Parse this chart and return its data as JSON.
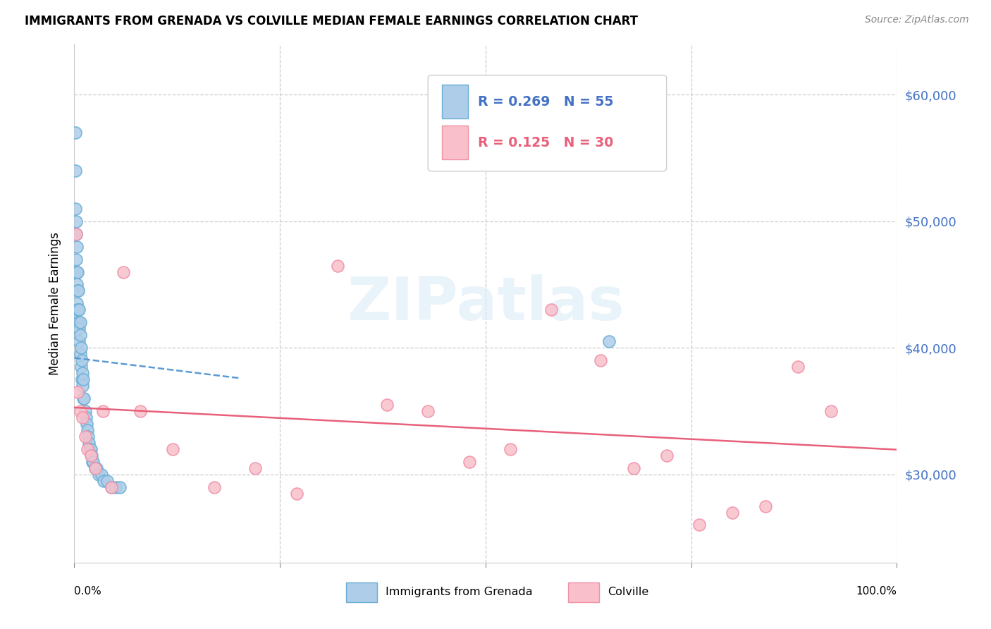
{
  "title": "IMMIGRANTS FROM GRENADA VS COLVILLE MEDIAN FEMALE EARNINGS CORRELATION CHART",
  "source": "Source: ZipAtlas.com",
  "ylabel": "Median Female Earnings",
  "yticks": [
    30000,
    40000,
    50000,
    60000
  ],
  "ytick_labels": [
    "$30,000",
    "$40,000",
    "$50,000",
    "$60,000"
  ],
  "xlim": [
    0.0,
    1.0
  ],
  "ylim": [
    23000,
    64000
  ],
  "blue_color": "#aecde8",
  "blue_edge": "#6aaed6",
  "pink_color": "#f9c0cb",
  "pink_edge": "#f090a8",
  "trend_blue_color": "#5b9bd5",
  "trend_pink_color": "#e8607a",
  "legend_R_blue": "R = 0.269",
  "legend_N_blue": "N = 55",
  "legend_R_pink": "R = 0.125",
  "legend_N_pink": "N = 30",
  "legend_label_blue": "Immigrants from Grenada",
  "legend_label_pink": "Colville",
  "watermark_text": "ZIPatlas",
  "blue_x": [
    0.001,
    0.001,
    0.001,
    0.001,
    0.002,
    0.002,
    0.002,
    0.002,
    0.003,
    0.003,
    0.003,
    0.003,
    0.004,
    0.004,
    0.004,
    0.004,
    0.005,
    0.005,
    0.005,
    0.006,
    0.006,
    0.006,
    0.007,
    0.007,
    0.007,
    0.008,
    0.008,
    0.009,
    0.009,
    0.01,
    0.01,
    0.011,
    0.011,
    0.012,
    0.013,
    0.014,
    0.015,
    0.016,
    0.017,
    0.018,
    0.019,
    0.02,
    0.021,
    0.022,
    0.023,
    0.025,
    0.027,
    0.03,
    0.033,
    0.036,
    0.04,
    0.045,
    0.05,
    0.055,
    0.65
  ],
  "blue_y": [
    57000,
    54000,
    51000,
    49000,
    50000,
    49000,
    47000,
    46000,
    48000,
    46000,
    45000,
    43500,
    46000,
    44500,
    43000,
    42000,
    44500,
    43000,
    42000,
    43000,
    41500,
    40500,
    42000,
    41000,
    39500,
    40000,
    38500,
    39000,
    37500,
    38000,
    37000,
    37500,
    36000,
    36000,
    35000,
    34500,
    34000,
    33500,
    33000,
    32500,
    32000,
    32000,
    31500,
    31000,
    31000,
    30500,
    30500,
    30000,
    30000,
    29500,
    29500,
    29000,
    29000,
    29000,
    40500
  ],
  "pink_x": [
    0.002,
    0.004,
    0.007,
    0.01,
    0.013,
    0.016,
    0.02,
    0.025,
    0.035,
    0.045,
    0.06,
    0.08,
    0.12,
    0.17,
    0.22,
    0.27,
    0.32,
    0.38,
    0.43,
    0.48,
    0.53,
    0.58,
    0.64,
    0.68,
    0.72,
    0.76,
    0.8,
    0.84,
    0.88,
    0.92
  ],
  "pink_y": [
    49000,
    36500,
    35000,
    34500,
    33000,
    32000,
    31500,
    30500,
    35000,
    29000,
    46000,
    35000,
    32000,
    29000,
    30500,
    28500,
    46500,
    35500,
    35000,
    31000,
    32000,
    43000,
    39000,
    30500,
    31500,
    26000,
    27000,
    27500,
    38500,
    35000
  ]
}
